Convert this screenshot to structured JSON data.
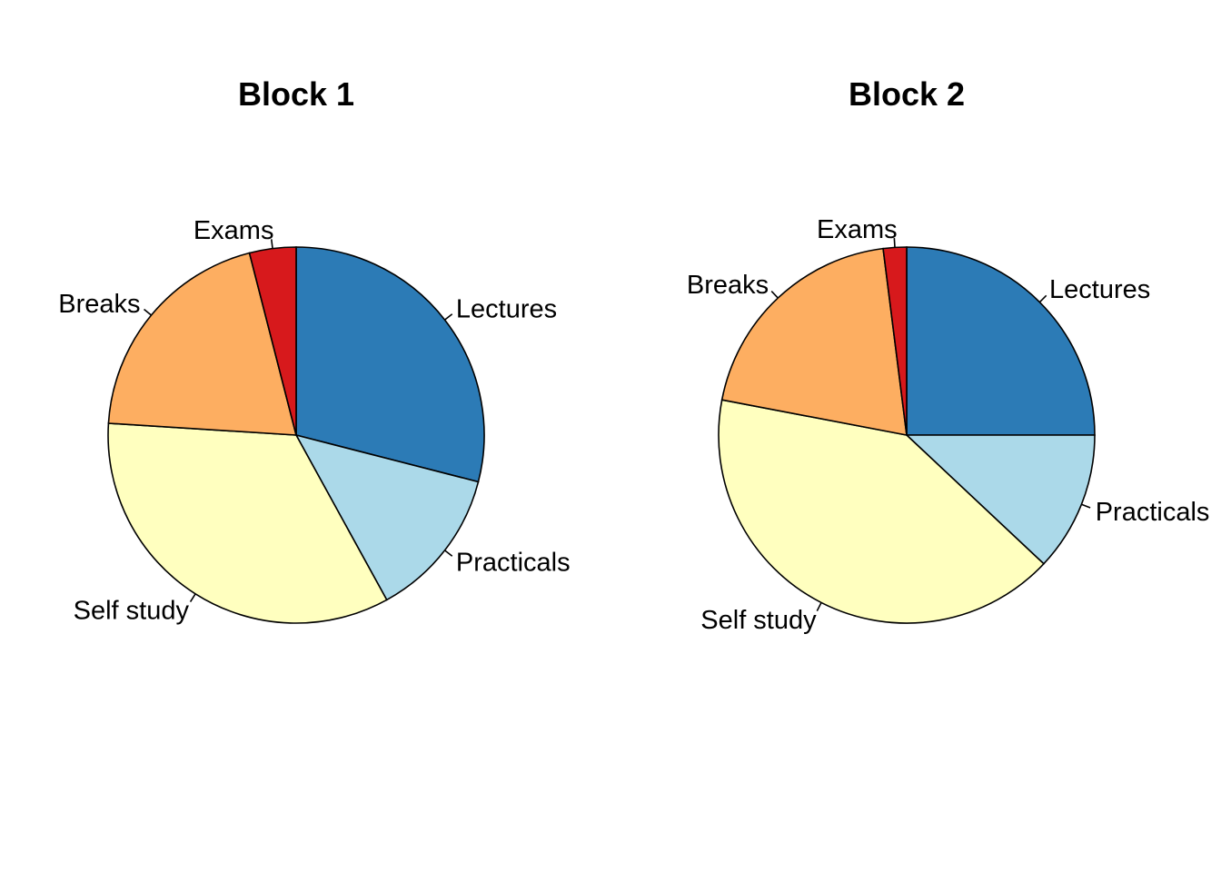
{
  "chart_data": [
    {
      "type": "pie",
      "title": "Block 1",
      "start_angle_deg": 90,
      "direction": "clockwise",
      "slices": [
        {
          "label": "Lectures",
          "value": 29,
          "color": "#2C7BB6"
        },
        {
          "label": "Practicals",
          "value": 13,
          "color": "#ABD9E9"
        },
        {
          "label": "Self study",
          "value": 34,
          "color": "#FFFFBF"
        },
        {
          "label": "Breaks",
          "value": 20,
          "color": "#FDAE61"
        },
        {
          "label": "Exams",
          "value": 4,
          "color": "#D7191C"
        }
      ]
    },
    {
      "type": "pie",
      "title": "Block 2",
      "start_angle_deg": 90,
      "direction": "clockwise",
      "slices": [
        {
          "label": "Lectures",
          "value": 25,
          "color": "#2C7BB6"
        },
        {
          "label": "Practicals",
          "value": 12,
          "color": "#ABD9E9"
        },
        {
          "label": "Self study",
          "value": 41,
          "color": "#FFFFBF"
        },
        {
          "label": "Breaks",
          "value": 20,
          "color": "#FDAE61"
        },
        {
          "label": "Exams",
          "value": 2,
          "color": "#D7191C"
        }
      ]
    }
  ]
}
